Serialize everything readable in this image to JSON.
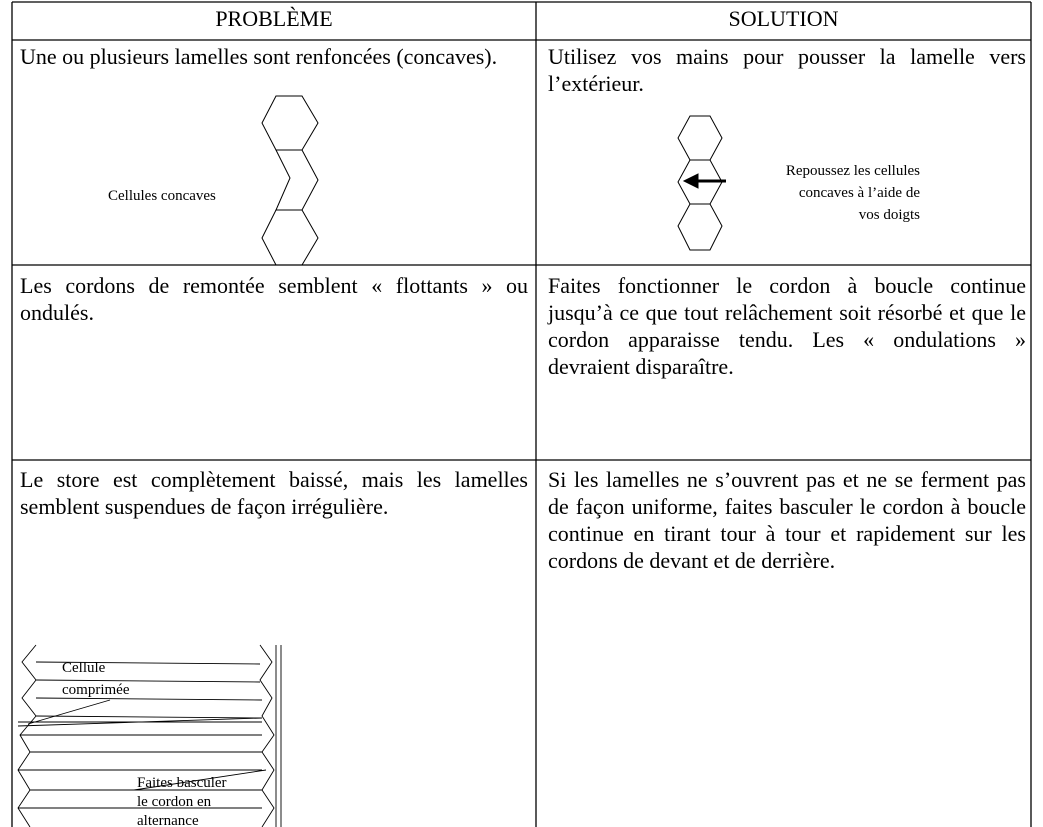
{
  "table": {
    "header": [
      "PROBLÈME",
      "SOLUTION"
    ],
    "rows": [
      {
        "problem": "Une ou plusieurs lamelles sont renfoncées (concaves).",
        "solution": "Utilisez vos mains pour pousser la lamelle vers l’extérieur."
      },
      {
        "problem": "Les cordons de remontée semblent « flottants » ou ondulés.",
        "solution": "Faites fonctionner le cordon à boucle continue jusqu’à ce que tout relâchement soit résorbé et que le cordon apparaisse tendu. Les « ondulations » devraient disparaître."
      },
      {
        "problem": "Le store est complètement baissé, mais les lamelles semblent suspendues de façon irrégulière.",
        "solution": "Si les lamelles ne s’ouvrent pas et ne se ferment pas de façon uniforme, faites basculer le cordon à boucle continue en tirant tour à tour et rapidement sur les cordons de devant et de derrière."
      }
    ]
  },
  "figures": {
    "concave_label": "Cellules concaves",
    "push_label": [
      "Repoussez les cellules",
      "concaves à l’aide de",
      "vos doigts"
    ],
    "compressed_label": [
      "Cellule",
      "comprimée"
    ],
    "tilt_label": [
      "Faites basculer",
      "le cordon en",
      "alternance"
    ]
  }
}
